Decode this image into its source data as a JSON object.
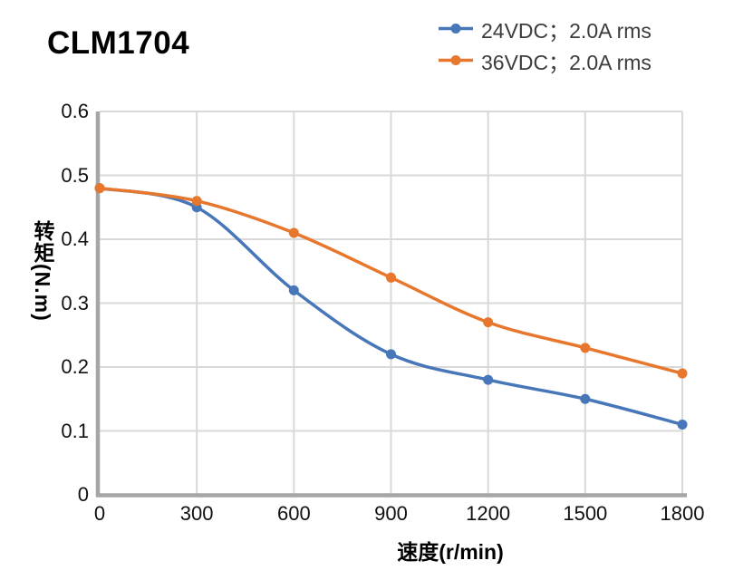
{
  "title": "CLM1704",
  "legend": {
    "position": "top-right",
    "items": [
      {
        "label": "24VDC；2.0A rms",
        "color": "#4777B9"
      },
      {
        "label": "36VDC；2.0A rms",
        "color": "#E8772E"
      }
    ]
  },
  "chart_data": {
    "type": "line",
    "smooth": true,
    "grid": true,
    "x": [
      0,
      300,
      600,
      900,
      1200,
      1500,
      1800
    ],
    "series": [
      {
        "name": "24VDC；2.0A rms",
        "color": "#4777B9",
        "values": [
          0.48,
          0.45,
          0.32,
          0.22,
          0.18,
          0.15,
          0.11
        ]
      },
      {
        "name": "36VDC；2.0A rms",
        "color": "#E8772E",
        "values": [
          0.48,
          0.46,
          0.41,
          0.34,
          0.27,
          0.23,
          0.19
        ]
      }
    ],
    "xlabel": "速度(r/min)",
    "ylabel": "转矩(N.m)",
    "xlim": [
      0,
      1800
    ],
    "ylim": [
      0,
      0.6
    ],
    "x_ticks": [
      "0",
      "300",
      "600",
      "900",
      "1200",
      "1500",
      "1800"
    ],
    "y_ticks": [
      "0.6",
      "0.5",
      "0.4",
      "0.3",
      "0.2",
      "0.1",
      "0"
    ],
    "colors": {
      "gridline": "#D9D9D9",
      "axis": "#A6A6A6",
      "tick_text": "#111111",
      "legend_text": "#3C3C3C",
      "title_text": "#000000",
      "background": "#FFFFFF"
    }
  }
}
